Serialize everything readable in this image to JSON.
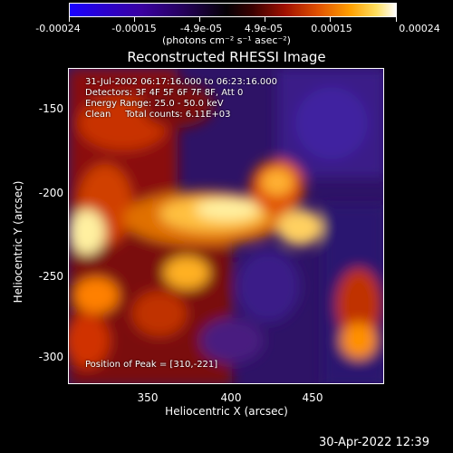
{
  "colorbar": {
    "ticks": [
      "-0.00024",
      "-0.00015",
      "-4.9e-05",
      "4.9e-05",
      "0.00015",
      "0.00024"
    ],
    "units": "(photons cm⁻² s⁻¹ asec⁻²)"
  },
  "title": "Reconstructed RHESSI Image",
  "annotations": {
    "line1": "31-Jul-2002 06:17:16.000 to 06:23:16.000",
    "line2": "Detectors: 3F 4F 5F 6F 7F 8F, Att 0",
    "line3": "Energy Range: 25.0 - 50.0 keV",
    "line4": "Clean     Total counts: 6.11E+03",
    "peak": "Position of Peak = [310,-221]"
  },
  "axes": {
    "xlabel": "Heliocentric X (arcsec)",
    "ylabel": "Heliocentric Y (arcsec)",
    "xticks": [
      "350",
      "400",
      "450"
    ],
    "yticks": [
      "-150",
      "-200",
      "-250",
      "-300"
    ]
  },
  "timestamp": "30-Apr-2022 12:39"
}
